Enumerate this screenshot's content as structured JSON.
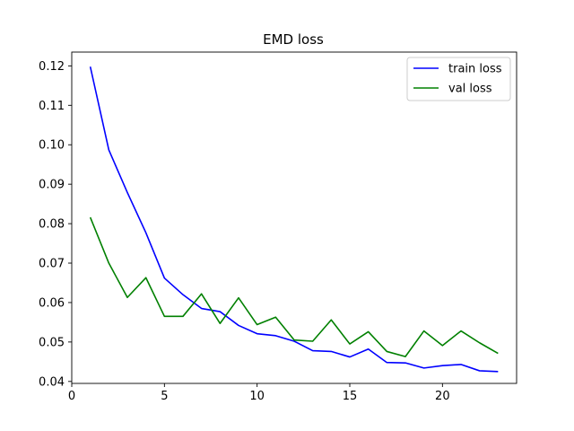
{
  "chart_data": {
    "type": "line",
    "title": "EMD loss",
    "xlabel": "",
    "ylabel": "",
    "xlim": [
      0,
      24
    ],
    "ylim": [
      0.0395,
      0.1235
    ],
    "xticks": [
      0,
      5,
      10,
      15,
      20
    ],
    "yticks": [
      0.04,
      0.05,
      0.06,
      0.07,
      0.08,
      0.09,
      0.1,
      0.11,
      0.12
    ],
    "ytick_labels": [
      "0.04",
      "0.05",
      "0.06",
      "0.07",
      "0.08",
      "0.09",
      "0.10",
      "0.11",
      "0.12"
    ],
    "grid": false,
    "legend_position": "top-right",
    "x": [
      1,
      2,
      3,
      4,
      5,
      6,
      7,
      8,
      9,
      10,
      11,
      12,
      13,
      14,
      15,
      16,
      17,
      18,
      19,
      20,
      21,
      22,
      23
    ],
    "series": [
      {
        "name": "train loss",
        "color": "#0000ff",
        "values": [
          0.1198,
          0.0987,
          0.0879,
          0.0777,
          0.0662,
          0.062,
          0.0585,
          0.0577,
          0.0542,
          0.0521,
          0.0516,
          0.0502,
          0.0478,
          0.0476,
          0.0462,
          0.0482,
          0.0448,
          0.0447,
          0.0434,
          0.044,
          0.0443,
          0.0427,
          0.0425
        ]
      },
      {
        "name": "val loss",
        "color": "#008000",
        "values": [
          0.0816,
          0.07,
          0.0613,
          0.0663,
          0.0565,
          0.0565,
          0.0622,
          0.0547,
          0.0612,
          0.0544,
          0.0563,
          0.0505,
          0.0502,
          0.0556,
          0.0495,
          0.0526,
          0.0476,
          0.0463,
          0.0528,
          0.0491,
          0.0528,
          0.0498,
          0.0471
        ]
      }
    ]
  }
}
